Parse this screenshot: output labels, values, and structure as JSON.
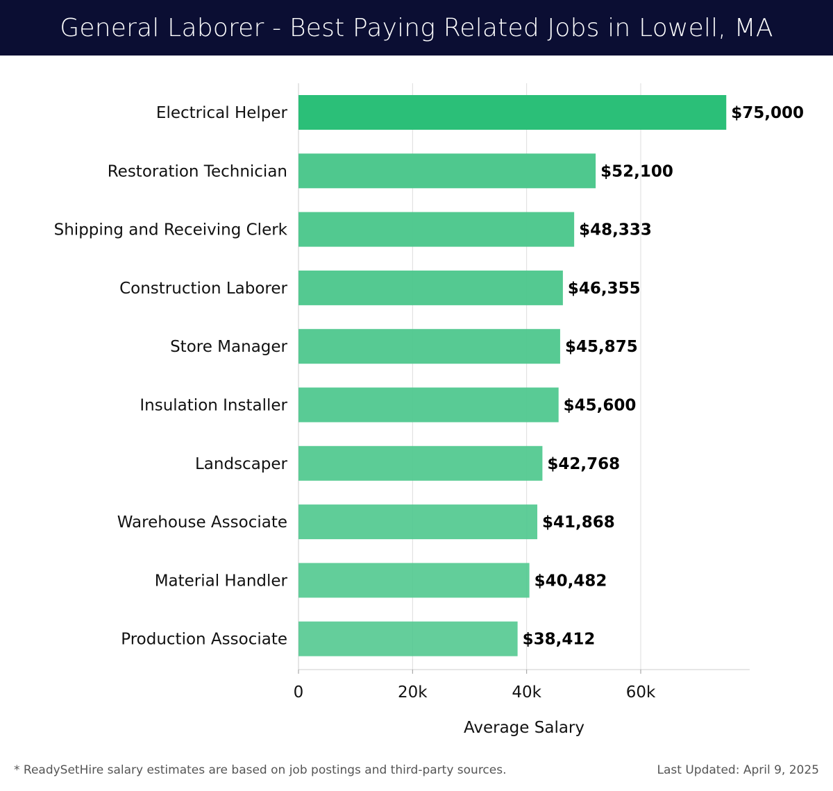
{
  "header": {
    "title": "General Laborer - Best Paying Related Jobs in Lowell, MA"
  },
  "footer": {
    "note": "* ReadySetHire salary estimates are based on job postings and third-party sources.",
    "updated": "Last Updated: April 9, 2025"
  },
  "colors": {
    "header_bg": "#0b0e33",
    "bar_top": "#2bbf78",
    "bar": "#4cc78c",
    "grid": "#dddddd"
  },
  "chart_data": {
    "type": "bar",
    "orientation": "horizontal",
    "categories": [
      "Electrical Helper",
      "Restoration Technician",
      "Shipping and Receiving Clerk",
      "Construction Laborer",
      "Store Manager",
      "Insulation Installer",
      "Landscaper",
      "Warehouse Associate",
      "Material Handler",
      "Production Associate"
    ],
    "values": [
      75000,
      52100,
      48333,
      46355,
      45875,
      45600,
      42768,
      41868,
      40482,
      38412
    ],
    "value_labels": [
      "$75,000",
      "$52,100",
      "$48,333",
      "$46,355",
      "$45,875",
      "$45,600",
      "$42,768",
      "$41,868",
      "$40,482",
      "$38,412"
    ],
    "xlabel": "Average Salary",
    "ylabel": "",
    "xlim": [
      0,
      79000
    ],
    "xticks": [
      0,
      20000,
      40000,
      60000
    ],
    "xtick_labels": [
      "0",
      "20k",
      "40k",
      "60k"
    ],
    "grid": true
  }
}
